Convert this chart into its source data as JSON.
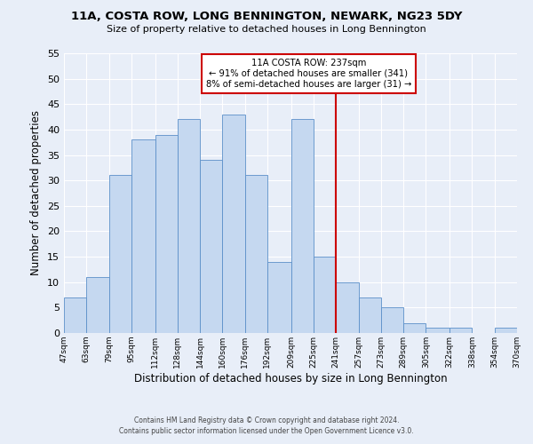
{
  "title": "11A, COSTA ROW, LONG BENNINGTON, NEWARK, NG23 5DY",
  "subtitle": "Size of property relative to detached houses in Long Bennington",
  "xlabel": "Distribution of detached houses by size in Long Bennington",
  "ylabel": "Number of detached properties",
  "bin_labels": [
    "47sqm",
    "63sqm",
    "79sqm",
    "95sqm",
    "112sqm",
    "128sqm",
    "144sqm",
    "160sqm",
    "176sqm",
    "192sqm",
    "209sqm",
    "225sqm",
    "241sqm",
    "257sqm",
    "273sqm",
    "289sqm",
    "305sqm",
    "322sqm",
    "338sqm",
    "354sqm",
    "370sqm"
  ],
  "bin_edges": [
    47,
    63,
    79,
    95,
    112,
    128,
    144,
    160,
    176,
    192,
    209,
    225,
    241,
    257,
    273,
    289,
    305,
    322,
    338,
    354,
    370
  ],
  "bar_heights": [
    7,
    11,
    31,
    38,
    39,
    42,
    34,
    43,
    31,
    14,
    42,
    15,
    10,
    7,
    5,
    2,
    1,
    1,
    0,
    1
  ],
  "bar_color": "#c5d8f0",
  "bar_edge_color": "#5b8fc9",
  "vline_x": 241,
  "vline_color": "#cc0000",
  "annotation_title": "11A COSTA ROW: 237sqm",
  "annotation_line1": "← 91% of detached houses are smaller (341)",
  "annotation_line2": "8% of semi-detached houses are larger (31) →",
  "annotation_box_color": "#ffffff",
  "annotation_box_edge": "#cc0000",
  "ylim": [
    0,
    55
  ],
  "yticks": [
    0,
    5,
    10,
    15,
    20,
    25,
    30,
    35,
    40,
    45,
    50,
    55
  ],
  "background_color": "#e8eef8",
  "grid_color": "#ffffff",
  "footer1": "Contains HM Land Registry data © Crown copyright and database right 2024.",
  "footer2": "Contains public sector information licensed under the Open Government Licence v3.0."
}
